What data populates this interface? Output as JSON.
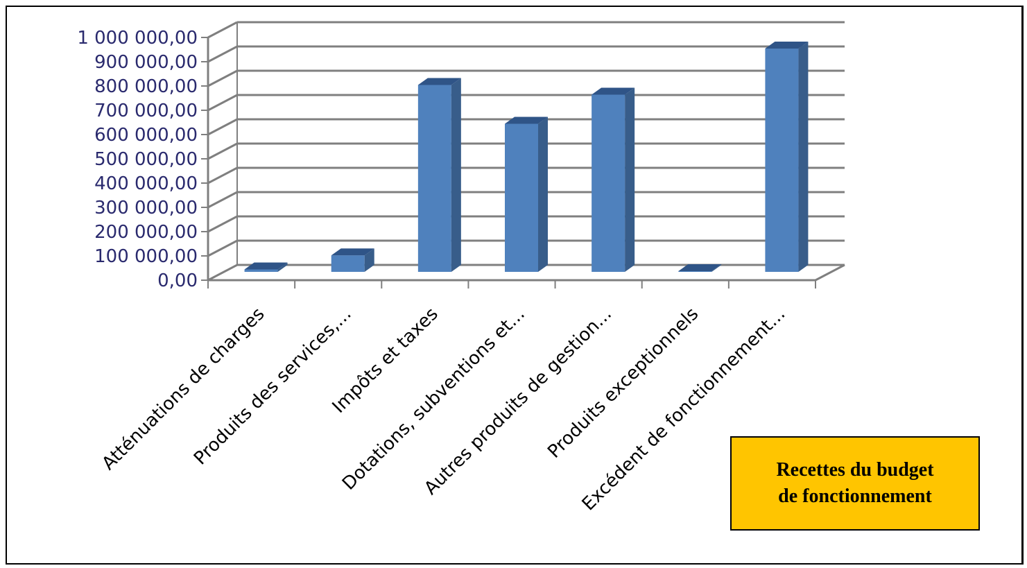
{
  "chart_data": {
    "type": "bar",
    "style": "3d-column",
    "caption_lines": [
      "Recettes du budget",
      "de fonctionnement"
    ],
    "categories": [
      "Atténuations de charges",
      "Produits des services,...",
      "Impôts et taxes",
      "Dotations, subventions et...",
      "Autres produits de gestion...",
      "Produits exceptionnels",
      "Excédent de fonctionnement..."
    ],
    "values": [
      10000,
      68000,
      770000,
      610000,
      730000,
      3000,
      920000
    ],
    "ylim": [
      0,
      1000000
    ],
    "yticks": [
      0,
      100000,
      200000,
      300000,
      400000,
      500000,
      600000,
      700000,
      800000,
      900000,
      1000000
    ],
    "ytick_labels": [
      "0,00",
      "100 000,00",
      "200 000,00",
      "300 000,00",
      "400 000,00",
      "500 000,00",
      "600 000,00",
      "700 000,00",
      "800 000,00",
      "900 000,00",
      "1 000 000,00"
    ],
    "grid": true,
    "colors": {
      "bar_front": "#4f81bd",
      "bar_side": "#385d8a",
      "bar_top": "#2f5487",
      "grid": "#7f7f7f",
      "tick_text": "#2a2a6e",
      "caption_bg": "#ffc500"
    }
  }
}
